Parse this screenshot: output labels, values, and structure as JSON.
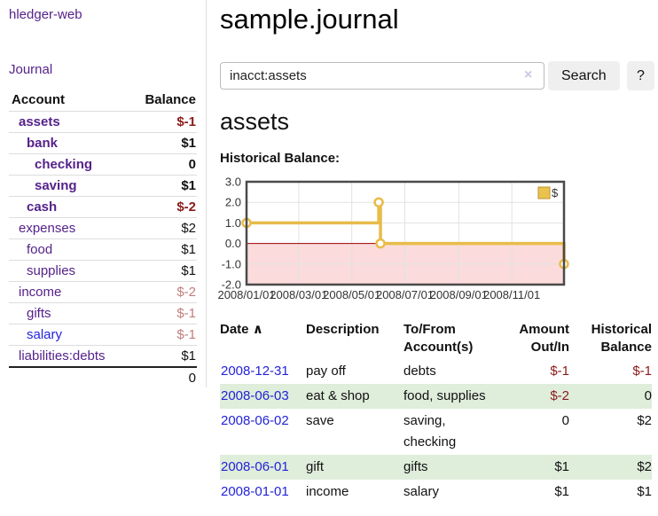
{
  "app": {
    "brand": "hledger-web"
  },
  "sidebar": {
    "journal_link": "Journal",
    "accounts": {
      "header_account": "Account",
      "header_balance": "Balance",
      "rows": [
        {
          "name": "assets",
          "depth": 0,
          "emph": "bold",
          "link": "purple",
          "balance": "$-1",
          "tone": "neg-strong"
        },
        {
          "name": "bank",
          "depth": 1,
          "emph": "bold",
          "link": "purple",
          "balance": "$1",
          "tone": "plain"
        },
        {
          "name": "checking",
          "depth": 2,
          "emph": "bold",
          "link": "purple",
          "balance": "0",
          "tone": "plain"
        },
        {
          "name": "saving",
          "depth": 2,
          "emph": "bold",
          "link": "purple",
          "balance": "$1",
          "tone": "plain"
        },
        {
          "name": "cash",
          "depth": 1,
          "emph": "bold",
          "link": "purple",
          "balance": "$-2",
          "tone": "neg-strong"
        },
        {
          "name": "expenses",
          "depth": 0,
          "emph": "normal",
          "link": "purple",
          "balance": "$2",
          "tone": "plain"
        },
        {
          "name": "food",
          "depth": 1,
          "emph": "normal",
          "link": "purple",
          "balance": "$1",
          "tone": "plain"
        },
        {
          "name": "supplies",
          "depth": 1,
          "emph": "normal",
          "link": "purple",
          "balance": "$1",
          "tone": "plain"
        },
        {
          "name": "income",
          "depth": 0,
          "emph": "normal",
          "link": "purple",
          "balance": "$-2",
          "tone": "neg-soft"
        },
        {
          "name": "gifts",
          "depth": 1,
          "emph": "normal",
          "link": "purple",
          "balance": "$-1",
          "tone": "neg-soft"
        },
        {
          "name": "salary",
          "depth": 1,
          "emph": "normal",
          "link": "blue",
          "balance": "$-1",
          "tone": "neg-soft"
        },
        {
          "name": "liabilities:debts",
          "depth": 0,
          "emph": "normal",
          "link": "purple",
          "balance": "$1",
          "tone": "plain"
        }
      ],
      "total": "0"
    }
  },
  "main": {
    "title": "sample.journal",
    "search": {
      "value": "inacct:assets",
      "clear_icon": "×",
      "search_label": "Search",
      "help_label": "?"
    },
    "account_heading": "assets",
    "section_label": "Historical Balance:",
    "register": {
      "headers": {
        "date": "Date",
        "sort_icon": "∧",
        "description": "Description",
        "accounts": "To/From Account(s)",
        "amount": "Amount Out/In",
        "balance": "Historical Balance"
      },
      "rows": [
        {
          "date": "2008-12-31",
          "description": "pay off",
          "accounts": "debts",
          "amount": "$-1",
          "amount_tone": "neg",
          "balance": "$-1",
          "balance_tone": "neg"
        },
        {
          "date": "2008-06-03",
          "description": "eat & shop",
          "accounts": "food, supplies",
          "amount": "$-2",
          "amount_tone": "neg",
          "balance": "0",
          "balance_tone": "plain"
        },
        {
          "date": "2008-06-02",
          "description": "save",
          "accounts": "saving, checking",
          "amount": "0",
          "amount_tone": "plain",
          "balance": "$2",
          "balance_tone": "plain"
        },
        {
          "date": "2008-06-01",
          "description": "gift",
          "accounts": "gifts",
          "amount": "$1",
          "amount_tone": "plain",
          "balance": "$2",
          "balance_tone": "plain"
        },
        {
          "date": "2008-01-01",
          "description": "income",
          "accounts": "salary",
          "amount": "$1",
          "amount_tone": "plain",
          "balance": "$1",
          "balance_tone": "plain"
        }
      ]
    }
  },
  "chart_data": {
    "type": "line",
    "step": true,
    "title": "Historical Balance",
    "series": [
      {
        "name": "$",
        "points": [
          {
            "date": "2008-01-01",
            "value": 1
          },
          {
            "date": "2008-06-01",
            "value": 2
          },
          {
            "date": "2008-06-03",
            "value": 0
          },
          {
            "date": "2008-12-31",
            "value": -1
          }
        ]
      }
    ],
    "x_range": [
      "2008-01-01",
      "2008-12-31"
    ],
    "xticks": [
      "2008/01/01",
      "2008/03/01",
      "2008/05/01",
      "2008/07/01",
      "2008/09/01",
      "2008/11/01"
    ],
    "yticks": [
      3,
      2,
      1,
      0,
      -1,
      -2
    ],
    "ytick_labels": [
      "3.0",
      "2.0",
      "1.0",
      "0.0",
      "-1.0",
      "-2.0"
    ],
    "grid_y": [
      2,
      1,
      -1
    ],
    "ylim": [
      -2,
      3
    ],
    "legend": {
      "position": "top-right",
      "label": "$"
    },
    "colors": {
      "line": "#e8bc4a",
      "marker_fill": "#ffffff",
      "below_zero_fill": "#fbdbdb",
      "zero_line": "#990000",
      "grid": "#e2e2e2",
      "border": "#4a4a4a",
      "legend_box_fill": "#ecc24f",
      "legend_box_stroke": "#b8952e"
    }
  }
}
